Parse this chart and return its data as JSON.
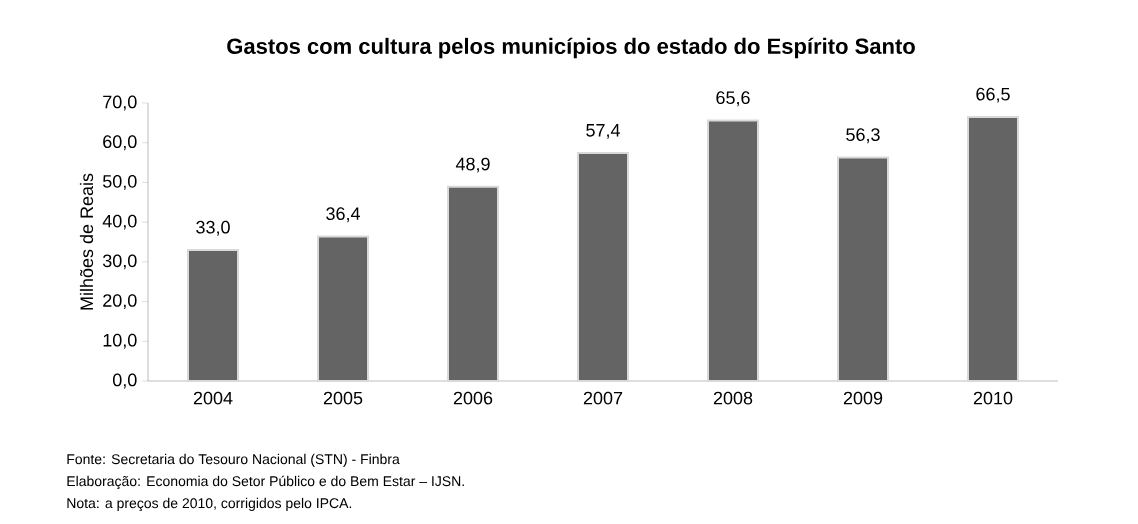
{
  "chart_data": {
    "type": "bar",
    "title": "Gastos com cultura pelos municípios do estado do Espírito Santo",
    "ylabel": "Milhões de Reais",
    "categories": [
      "2004",
      "2005",
      "2006",
      "2007",
      "2008",
      "2009",
      "2010"
    ],
    "values": [
      33.0,
      36.4,
      48.9,
      57.4,
      65.6,
      56.3,
      66.5
    ],
    "value_labels": [
      "33,0",
      "36,4",
      "48,9",
      "57,4",
      "65,6",
      "56,3",
      "66,5"
    ],
    "color": "#646464",
    "ylim": [
      0,
      70
    ],
    "yticks": [
      {
        "value": 0,
        "label": "0,0"
      },
      {
        "value": 10,
        "label": "10,0"
      },
      {
        "value": 20,
        "label": "20,0"
      },
      {
        "value": 30,
        "label": "30,0"
      },
      {
        "value": 40,
        "label": "40,0"
      },
      {
        "value": 50,
        "label": "50,0"
      },
      {
        "value": 60,
        "label": "60,0"
      },
      {
        "value": 70,
        "label": "70,0"
      }
    ],
    "annotations": [
      "Fonte: Secretaria do Tesouro Nacional (STN) - Finbra",
      "Elaboração: Economia do Setor Público e do Bem Estar – IJSN.",
      "Nota: a preços de 2010, corrigidos pelo IPCA."
    ]
  }
}
